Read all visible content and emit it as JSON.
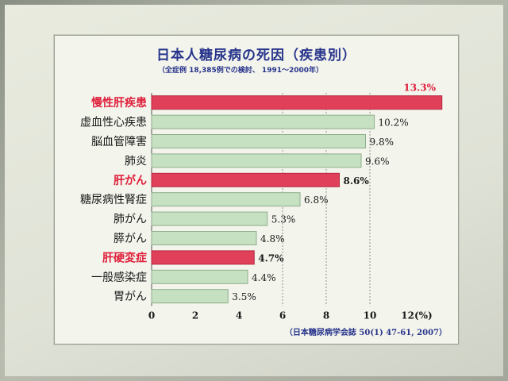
{
  "chart_data": {
    "type": "bar",
    "orientation": "horizontal",
    "title": "日本人糖尿病の死因（疾患別）",
    "subtitle": "（全症例 18,385例での検討、 1991～2000年）",
    "source": "（日本糖尿病学会誌 50(1) 47-61, 2007）",
    "x_unit_label": "12(%)",
    "xlim": [
      0,
      12
    ],
    "x_ticks": [
      "0",
      "2",
      "4",
      "6",
      "8",
      "10"
    ],
    "grid": "vertical dashed",
    "categories": [
      "慢性肝疾患",
      "虚血性心疾患",
      "脳血管障害",
      "肺炎",
      "肝がん",
      "糖尿病性腎症",
      "肺がん",
      "膵がん",
      "肝硬変症",
      "一般感染症",
      "胃がん"
    ],
    "values": [
      13.3,
      10.2,
      9.8,
      9.6,
      8.6,
      6.8,
      5.3,
      4.8,
      4.7,
      4.4,
      3.5
    ],
    "value_labels": [
      "13.3%",
      "10.2%",
      "9.8%",
      "9.6%",
      "8.6%",
      "6.8%",
      "5.3%",
      "4.8%",
      "4.7%",
      "4.4%",
      "3.5%"
    ],
    "highlighted": [
      true,
      false,
      false,
      false,
      true,
      false,
      false,
      false,
      true,
      false,
      false
    ],
    "colors": {
      "normal_bar": "#c6e0c2",
      "normal_bar_border": "#8fae8b",
      "highlight_bar": "#e0405a",
      "highlight_label": "#e0203c",
      "title": "#27348b",
      "text": "#1a1a1a"
    }
  }
}
